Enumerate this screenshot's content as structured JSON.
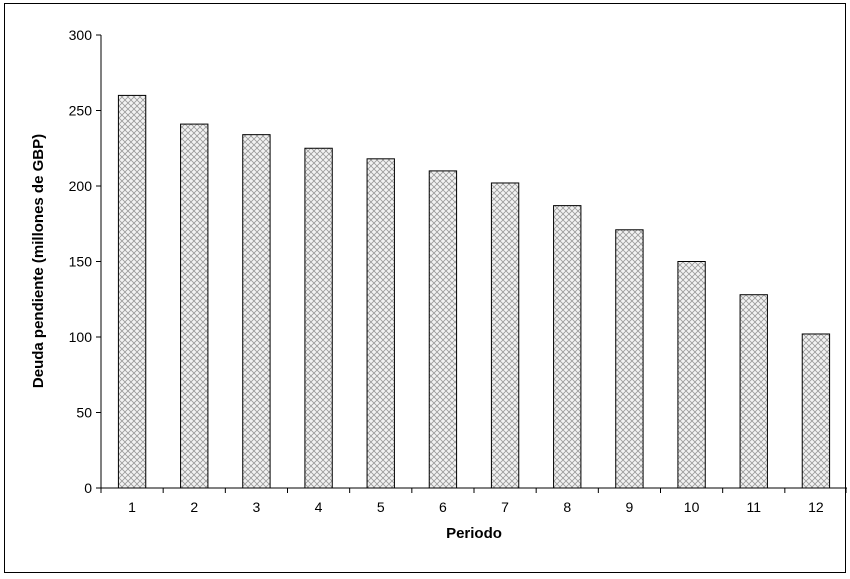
{
  "chart_data": {
    "type": "bar",
    "title": "",
    "xlabel": "Periodo",
    "ylabel": "Deuda pendiente (millones de GBP)",
    "categories": [
      "1",
      "2",
      "3",
      "4",
      "5",
      "6",
      "7",
      "8",
      "9",
      "10",
      "11",
      "12"
    ],
    "values": [
      260,
      241,
      234,
      225,
      218,
      210,
      202,
      187,
      171,
      150,
      128,
      102
    ],
    "ylim": [
      0,
      300
    ],
    "yticks": [
      "0",
      "50",
      "100",
      "150",
      "200",
      "250",
      "300"
    ],
    "grid": false,
    "legend": "none",
    "bar_pattern": "crosshatch",
    "colors": {
      "bar_fill": "#f2f2f2",
      "hatch": "#9a9a9a",
      "bar_stroke": "#000000",
      "axis": "#000000"
    }
  }
}
